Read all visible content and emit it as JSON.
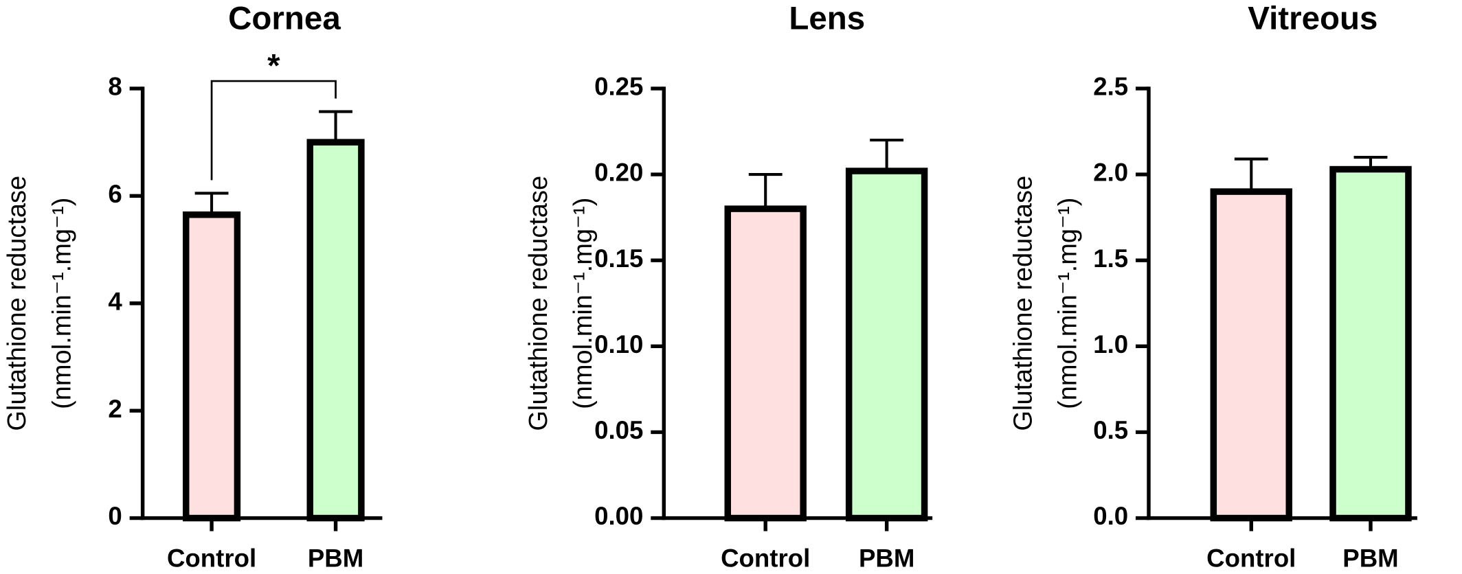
{
  "chart_data": [
    {
      "type": "bar",
      "title": "Cornea",
      "ylabel": [
        "Glutathione reductase",
        "(nmol.min⁻¹.mg⁻¹)"
      ],
      "categories": [
        "Control",
        "PBM"
      ],
      "values": [
        5.65,
        7.0
      ],
      "errors": [
        0.4,
        0.57
      ],
      "colors": [
        "#ffe0e0",
        "#ccffcc"
      ],
      "ylim": [
        0,
        8
      ],
      "yticks": [
        0,
        2,
        4,
        6,
        8
      ],
      "annotations": [
        "*"
      ]
    },
    {
      "type": "bar",
      "title": "Lens",
      "ylabel": [
        "Glutathione reductase",
        "(nmol.min⁻¹.mg⁻¹)"
      ],
      "categories": [
        "Control",
        "PBM"
      ],
      "values": [
        0.18,
        0.202
      ],
      "errors": [
        0.02,
        0.018
      ],
      "colors": [
        "#ffe0e0",
        "#ccffcc"
      ],
      "ylim": [
        0,
        0.25
      ],
      "yticks": [
        {
          "value": 0,
          "label": "0.00"
        },
        0.05,
        {
          "value": 0.1,
          "label": "0.10"
        },
        0.15,
        {
          "value": 0.2,
          "label": "0.20"
        },
        0.25
      ]
    },
    {
      "type": "bar",
      "title": "Vitreous",
      "ylabel": [
        "Glutathione reductase",
        "(nmol.min⁻¹.mg⁻¹)"
      ],
      "categories": [
        "Control",
        "PBM"
      ],
      "values": [
        1.9,
        2.03
      ],
      "errors": [
        0.19,
        0.07
      ],
      "colors": [
        "#ffe0e0",
        "#ccffcc"
      ],
      "ylim": [
        0,
        2.5
      ],
      "yticks": [
        {
          "value": 0,
          "label": "0.0"
        },
        0.5,
        {
          "value": 1,
          "label": "1.0"
        },
        1.5,
        {
          "value": 2,
          "label": "2.0"
        },
        2.5
      ]
    }
  ]
}
